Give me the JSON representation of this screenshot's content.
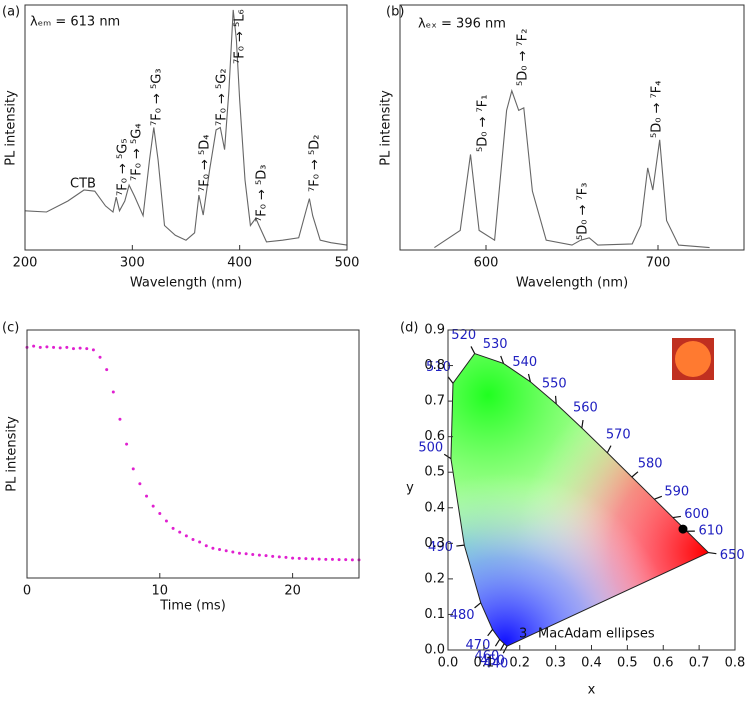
{
  "chart_data": [
    {
      "type": "line",
      "panel_label": "(a)",
      "x_label": "Wavelength (nm)",
      "y_label": "PL intensity",
      "color": "#666666",
      "xlim": [
        200,
        500
      ],
      "ylim": [
        0,
        100
      ],
      "xticks": [
        200,
        300,
        400,
        500
      ],
      "x": [
        200,
        220,
        240,
        255,
        265,
        275,
        282,
        285,
        288,
        293,
        297,
        302,
        310,
        316,
        320,
        324,
        330,
        340,
        350,
        358,
        362,
        366,
        372,
        378,
        382,
        386,
        390,
        394,
        397,
        400,
        405,
        410,
        415,
        418,
        425,
        440,
        455,
        462,
        465,
        468,
        475,
        485,
        500
      ],
      "values": [
        16,
        15.5,
        20,
        24.5,
        24,
        18,
        15.5,
        21.6,
        16,
        20,
        26.5,
        22,
        14,
        36.7,
        50,
        36.7,
        10,
        6,
        4,
        7,
        22.4,
        14.3,
        32.7,
        49,
        50,
        41,
        65,
        98,
        85.7,
        61,
        28.6,
        10,
        13,
        10,
        3.3,
        4,
        5,
        16.3,
        21,
        14,
        4,
        3,
        2
      ],
      "annotations": [
        "λₑₘ = 613 nm",
        "CTB",
        "⁷F₀ → ⁵G₅",
        "⁷F₀ → ⁵G₄",
        "⁷F₀ → ⁵G₃",
        "⁷F₀ → ⁵D₄",
        "⁷F₀ → ⁵G₂",
        "⁷F₀ → ⁵L₆",
        "⁷F₀ → ⁵D₃",
        "⁷F₀ → ⁵D₂"
      ]
    },
    {
      "type": "line",
      "panel_label": "(b)",
      "x_label": "Wavelength (nm)",
      "y_label": "PL intensity",
      "color": "#666666",
      "xlim": [
        550,
        750
      ],
      "ylim": [
        0,
        100
      ],
      "xticks": [
        600,
        700
      ],
      "x": [
        570,
        585,
        591,
        596,
        605,
        612,
        615,
        619,
        622,
        627,
        635,
        650,
        655,
        660,
        665,
        685,
        690,
        694,
        697,
        701,
        705,
        712,
        730
      ],
      "values": [
        1,
        8,
        39,
        8,
        4,
        57,
        65,
        57,
        58,
        24,
        4,
        2,
        4,
        5,
        2,
        2.5,
        10,
        33.5,
        24.5,
        45,
        12,
        2,
        1
      ],
      "annotations": [
        "λₑₓ = 396 nm",
        "⁵D₀ → ⁷F₁",
        "⁵D₀ → ⁷F₂",
        "⁵D₀ → ⁷F₃",
        "⁵D₀ → ⁷F₄"
      ]
    },
    {
      "type": "scatter",
      "panel_label": "(c)",
      "x_label": "Time (ms)",
      "y_label": "PL intensity",
      "color": "#e020d0",
      "xlim": [
        0,
        25
      ],
      "ylim": [
        0,
        100
      ],
      "xticks": [
        0,
        10,
        20
      ],
      "x": [
        0,
        0.5,
        1,
        1.5,
        2,
        2.5,
        3,
        3.5,
        4,
        4.5,
        5,
        5.5,
        6,
        6.5,
        7,
        7.5,
        8,
        8.5,
        9,
        9.5,
        10,
        10.5,
        11,
        11.5,
        12,
        12.5,
        13,
        13.5,
        14,
        14.5,
        15,
        15.5,
        16,
        16.5,
        17,
        17.5,
        18,
        18.5,
        19,
        19.5,
        20,
        20.5,
        21,
        21.5,
        22,
        22.5,
        23,
        23.5,
        24,
        24.5,
        25
      ],
      "values": [
        93,
        93.5,
        93,
        93.2,
        93,
        92.8,
        93,
        92.5,
        92.7,
        92.5,
        92,
        89,
        84,
        75,
        64,
        54,
        44,
        38,
        33,
        29,
        26,
        23,
        20,
        18.5,
        17,
        15.5,
        14.5,
        13,
        12,
        11.5,
        11,
        10.5,
        10,
        9.8,
        9.5,
        9.2,
        9,
        8.7,
        8.5,
        8.3,
        8,
        7.9,
        7.8,
        7.7,
        7.6,
        7.5,
        7.5,
        7.4,
        7.4,
        7.3,
        7.3
      ]
    },
    {
      "type": "chromaticity",
      "panel_label": "(d)",
      "x_label": "x",
      "y_label": "y",
      "xlim": [
        0,
        0.8
      ],
      "ylim": [
        0,
        0.9
      ],
      "xticks": [
        {
          "value": 0,
          "label": "0.0"
        },
        0.1,
        0.2,
        0.3,
        0.4,
        0.5,
        0.6,
        0.7,
        0.8
      ],
      "yticks": [
        {
          "value": 0,
          "label": "0.0"
        },
        0.1,
        0.2,
        0.3,
        0.4,
        0.5,
        0.6,
        0.7,
        0.8,
        0.9
      ],
      "locus": {
        "wavelengths": [
          440,
          450,
          460,
          470,
          480,
          490,
          500,
          510,
          520,
          530,
          540,
          550,
          560,
          570,
          580,
          590,
          600,
          610,
          650
        ],
        "x": [
          0.1644,
          0.1566,
          0.144,
          0.1241,
          0.0913,
          0.0454,
          0.0082,
          0.0139,
          0.0743,
          0.1547,
          0.2296,
          0.3016,
          0.3731,
          0.4441,
          0.5125,
          0.5752,
          0.627,
          0.6658,
          0.726
        ],
        "y": [
          0.0109,
          0.0177,
          0.0297,
          0.0578,
          0.1327,
          0.295,
          0.5384,
          0.7502,
          0.8338,
          0.8059,
          0.7543,
          0.6923,
          0.6245,
          0.5547,
          0.4866,
          0.4242,
          0.3725,
          0.334,
          0.274
        ]
      },
      "point": {
        "x": 0.655,
        "y": 0.34
      },
      "annotations": [
        "3",
        "MacAdam ellipses"
      ]
    }
  ]
}
